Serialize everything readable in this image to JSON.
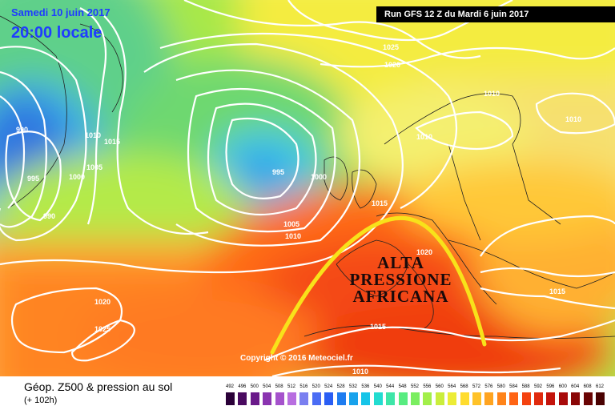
{
  "header": {
    "date_line": "Samedi 10 juin 2017",
    "time_line": "20:00 locale",
    "run_line": "Run GFS 12 Z du Mardi 6 juin 2017"
  },
  "annotation": {
    "line1": "ALTA",
    "line2": "PRESSIONE",
    "line3": "AFRICANA"
  },
  "copyright": "Copyright © 2016 Meteociel.fr",
  "footer": {
    "title": "Géop. Z500 & pression au sol",
    "subtitle": "(+ 102h)"
  },
  "isobar_labels": [
    "990",
    "995",
    "990",
    "1010",
    "1015",
    "1005",
    "1000",
    "995",
    "1000",
    "1005",
    "1010",
    "1015",
    "1025",
    "1020",
    "1010",
    "1010",
    "1010",
    "1020",
    "1015",
    "1020",
    "1025",
    "1015",
    "1010"
  ],
  "legend": {
    "values": [
      "492",
      "496",
      "500",
      "504",
      "508",
      "512",
      "516",
      "520",
      "524",
      "528",
      "532",
      "536",
      "540",
      "544",
      "548",
      "552",
      "556",
      "560",
      "564",
      "568",
      "572",
      "576",
      "580",
      "584",
      "588",
      "592",
      "596",
      "600",
      "604",
      "608",
      "612"
    ],
    "colors": [
      "#2a0038",
      "#4a0a60",
      "#6a1a8a",
      "#8a34b0",
      "#a552cc",
      "#b86ee0",
      "#7a7ff0",
      "#4a6cf4",
      "#2a5ef4",
      "#1e7cf0",
      "#18a2ec",
      "#16c4e8",
      "#22dcd0",
      "#3ee6a8",
      "#58ec80",
      "#7aee60",
      "#a2ef4a",
      "#caee3c",
      "#ecec36",
      "#ffdc2e",
      "#ffc228",
      "#ffa420",
      "#ff841a",
      "#ff6414",
      "#f44210",
      "#e02a0e",
      "#c4140c",
      "#a80a0a",
      "#8a0606",
      "#6a0404",
      "#4a0202"
    ]
  }
}
